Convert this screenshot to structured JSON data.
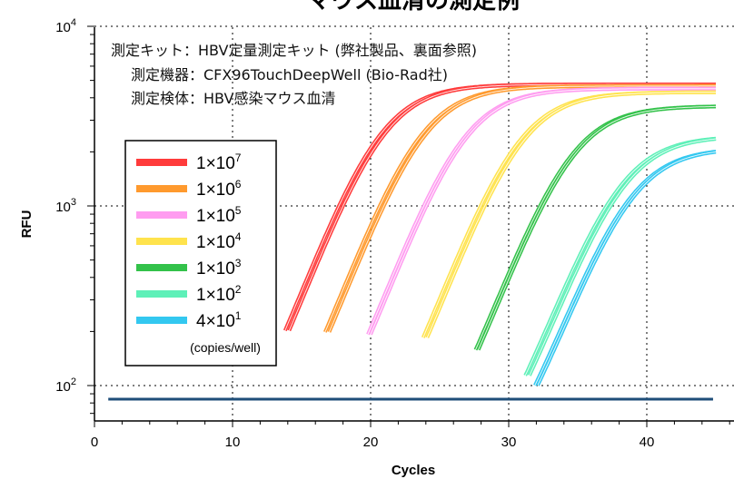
{
  "chart_data": {
    "type": "line",
    "title": "マウス血清の測定例",
    "notes": [
      "測定キット：HBV定量測定キット (弊社製品、裏面参照)",
      "測定機器：CFX96TouchDeepWell (Bio-Rad社)",
      "測定検体：HBV感染マウス血清"
    ],
    "xlabel": "Cycles",
    "ylabel": "RFU",
    "xlim": [
      0,
      45
    ],
    "ylim": [
      70,
      10000
    ],
    "y_scale": "log",
    "x_ticks": [
      0,
      10,
      20,
      30,
      40
    ],
    "x_tick_labels": [
      "0",
      "10",
      "20",
      "30",
      "40"
    ],
    "y_ticks": [
      {
        "value": 100,
        "base": "10",
        "exp": "2"
      },
      {
        "value": 1000,
        "base": "10",
        "exp": "3"
      },
      {
        "value": 10000,
        "base": "10",
        "exp": "4"
      }
    ],
    "grid": true,
    "threshold": {
      "value": 84,
      "color": "#1f4e79"
    },
    "legend": {
      "position": "left",
      "unit": "(copies/well)",
      "entries": [
        {
          "base": "1×10",
          "exp": "7",
          "color": "#ff3b3b"
        },
        {
          "base": "1×10",
          "exp": "6",
          "color": "#ff9a2e"
        },
        {
          "base": "1×10",
          "exp": "5",
          "color": "#ff9cf0"
        },
        {
          "base": "1×10",
          "exp": "4",
          "color": "#ffe34d"
        },
        {
          "base": "1×10",
          "exp": "3",
          "color": "#33c24a"
        },
        {
          "base": "1×10",
          "exp": "2",
          "color": "#5ef0b8"
        },
        {
          "base": "4×10",
          "exp": "1",
          "color": "#33c8f0"
        }
      ]
    },
    "series": [
      {
        "color": "#ff3b3b",
        "plateau": 4750,
        "curves": [
          {
            "c0": 16.3,
            "k": 0.3
          },
          {
            "c0": 16.6,
            "k": 0.3
          }
        ]
      },
      {
        "color": "#ff9a2e",
        "plateau": 4650,
        "curves": [
          {
            "c0": 19.2,
            "k": 0.3
          },
          {
            "c0": 19.5,
            "k": 0.3
          }
        ]
      },
      {
        "color": "#ff9cf0",
        "plateau": 4500,
        "curves": [
          {
            "c0": 22.3,
            "k": 0.3
          },
          {
            "c0": 22.5,
            "k": 0.3
          }
        ]
      },
      {
        "color": "#ffe34d",
        "plateau": 4300,
        "curves": [
          {
            "c0": 26.3,
            "k": 0.3
          },
          {
            "c0": 26.6,
            "k": 0.3
          }
        ]
      },
      {
        "color": "#33c24a",
        "plateau": 3600,
        "curves": [
          {
            "c0": 30.1,
            "k": 0.3
          },
          {
            "c0": 30.3,
            "k": 0.3
          }
        ]
      },
      {
        "color": "#5ef0b8",
        "plateau": 2450,
        "curves": [
          {
            "c0": 33.7,
            "k": 0.3
          },
          {
            "c0": 34.0,
            "k": 0.3
          }
        ]
      },
      {
        "color": "#33c8f0",
        "plateau": 2100,
        "curves": [
          {
            "c0": 34.4,
            "k": 0.3
          },
          {
            "c0": 34.6,
            "k": 0.3
          }
        ]
      }
    ]
  }
}
